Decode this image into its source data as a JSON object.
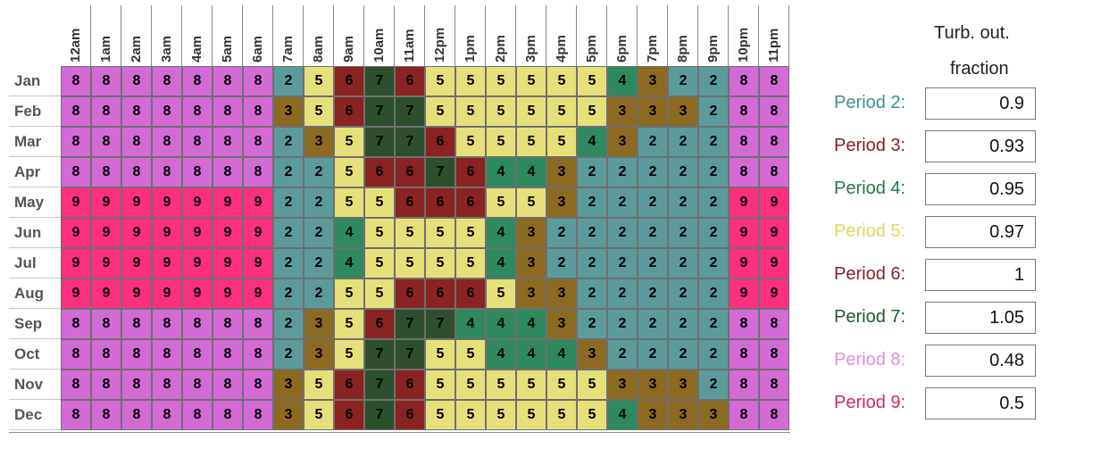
{
  "hours": [
    "12am",
    "1am",
    "2am",
    "3am",
    "4am",
    "5am",
    "6am",
    "7am",
    "8am",
    "9am",
    "10am",
    "11am",
    "12pm",
    "1pm",
    "2pm",
    "3pm",
    "4pm",
    "5pm",
    "6pm",
    "7pm",
    "8pm",
    "9pm",
    "10pm",
    "11pm"
  ],
  "months": [
    "Jan",
    "Feb",
    "Mar",
    "Apr",
    "May",
    "Jun",
    "Jul",
    "Aug",
    "Sep",
    "Oct",
    "Nov",
    "Dec"
  ],
  "grid": [
    [
      "8",
      "8",
      "8",
      "8",
      "8",
      "8",
      "8",
      "2",
      "5",
      "6",
      "7",
      "6",
      "5",
      "5",
      "5",
      "5",
      "5",
      "5",
      "4",
      "3",
      "2",
      "2",
      "8",
      "8"
    ],
    [
      "8",
      "8",
      "8",
      "8",
      "8",
      "8",
      "8",
      "3",
      "5",
      "6",
      "7",
      "7",
      "5",
      "5",
      "5",
      "5",
      "5",
      "5",
      "3",
      "3",
      "3",
      "2",
      "8",
      "8"
    ],
    [
      "8",
      "8",
      "8",
      "8",
      "8",
      "8",
      "8",
      "2",
      "3",
      "5",
      "7",
      "7",
      "6",
      "5",
      "5",
      "5",
      "5",
      "4",
      "3",
      "2",
      "2",
      "2",
      "8",
      "8"
    ],
    [
      "8",
      "8",
      "8",
      "8",
      "8",
      "8",
      "8",
      "2",
      "2",
      "5",
      "6",
      "6",
      "7",
      "6",
      "4",
      "4",
      "3",
      "2",
      "2",
      "2",
      "2",
      "2",
      "8",
      "8"
    ],
    [
      "9",
      "9",
      "9",
      "9",
      "9",
      "9",
      "9",
      "2",
      "2",
      "5",
      "5",
      "6",
      "6",
      "6",
      "5",
      "5",
      "3",
      "2",
      "2",
      "2",
      "2",
      "2",
      "9",
      "9"
    ],
    [
      "9",
      "9",
      "9",
      "9",
      "9",
      "9",
      "9",
      "2",
      "2",
      "4",
      "5",
      "5",
      "5",
      "5",
      "4",
      "3",
      "2",
      "2",
      "2",
      "2",
      "2",
      "2",
      "9",
      "9"
    ],
    [
      "9",
      "9",
      "9",
      "9",
      "9",
      "9",
      "9",
      "2",
      "2",
      "4",
      "5",
      "5",
      "5",
      "5",
      "4",
      "3",
      "2",
      "2",
      "2",
      "2",
      "2",
      "2",
      "9",
      "9"
    ],
    [
      "9",
      "9",
      "9",
      "9",
      "9",
      "9",
      "9",
      "2",
      "2",
      "5",
      "5",
      "6",
      "6",
      "6",
      "5",
      "3",
      "3",
      "2",
      "2",
      "2",
      "2",
      "2",
      "9",
      "9"
    ],
    [
      "8",
      "8",
      "8",
      "8",
      "8",
      "8",
      "8",
      "2",
      "3",
      "5",
      "6",
      "7",
      "7",
      "4",
      "4",
      "4",
      "3",
      "2",
      "2",
      "2",
      "2",
      "2",
      "8",
      "8"
    ],
    [
      "8",
      "8",
      "8",
      "8",
      "8",
      "8",
      "8",
      "2",
      "3",
      "5",
      "7",
      "7",
      "5",
      "5",
      "4",
      "4",
      "4",
      "3",
      "2",
      "2",
      "2",
      "2",
      "8",
      "8"
    ],
    [
      "8",
      "8",
      "8",
      "8",
      "8",
      "8",
      "8",
      "3",
      "5",
      "6",
      "7",
      "6",
      "5",
      "5",
      "5",
      "5",
      "5",
      "5",
      "3",
      "3",
      "3",
      "2",
      "8",
      "8"
    ],
    [
      "8",
      "8",
      "8",
      "8",
      "8",
      "8",
      "8",
      "3",
      "5",
      "6",
      "7",
      "6",
      "5",
      "5",
      "5",
      "5",
      "5",
      "5",
      "4",
      "3",
      "3",
      "3",
      "8",
      "8"
    ]
  ],
  "period_colors": {
    "2": "#5b9b9b",
    "3": "#8c6a22",
    "4": "#2e8a5e",
    "5": "#e6e07a",
    "6": "#8b2323",
    "7": "#2e4f2e",
    "8": "#d36ad6",
    "9": "#ff2f7f"
  },
  "panel": {
    "title_line1": "Turb. out.",
    "title_line2": "fraction",
    "periods": [
      {
        "label": "Period 2:",
        "value": "0.9",
        "color": "#3f8f8f"
      },
      {
        "label": "Period 3:",
        "value": "0.93",
        "color": "#8b1a1a"
      },
      {
        "label": "Period 4:",
        "value": "0.95",
        "color": "#1f7a4a"
      },
      {
        "label": "Period 5:",
        "value": "0.97",
        "color": "#e0d95a"
      },
      {
        "label": "Period 6:",
        "value": "1",
        "color": "#8b1f2f"
      },
      {
        "label": "Period 7:",
        "value": "1.05",
        "color": "#1a5a2a"
      },
      {
        "label": "Period 8:",
        "value": "0.48",
        "color": "#e08ee0"
      },
      {
        "label": "Period 9:",
        "value": "0.5",
        "color": "#d4265f"
      }
    ]
  }
}
